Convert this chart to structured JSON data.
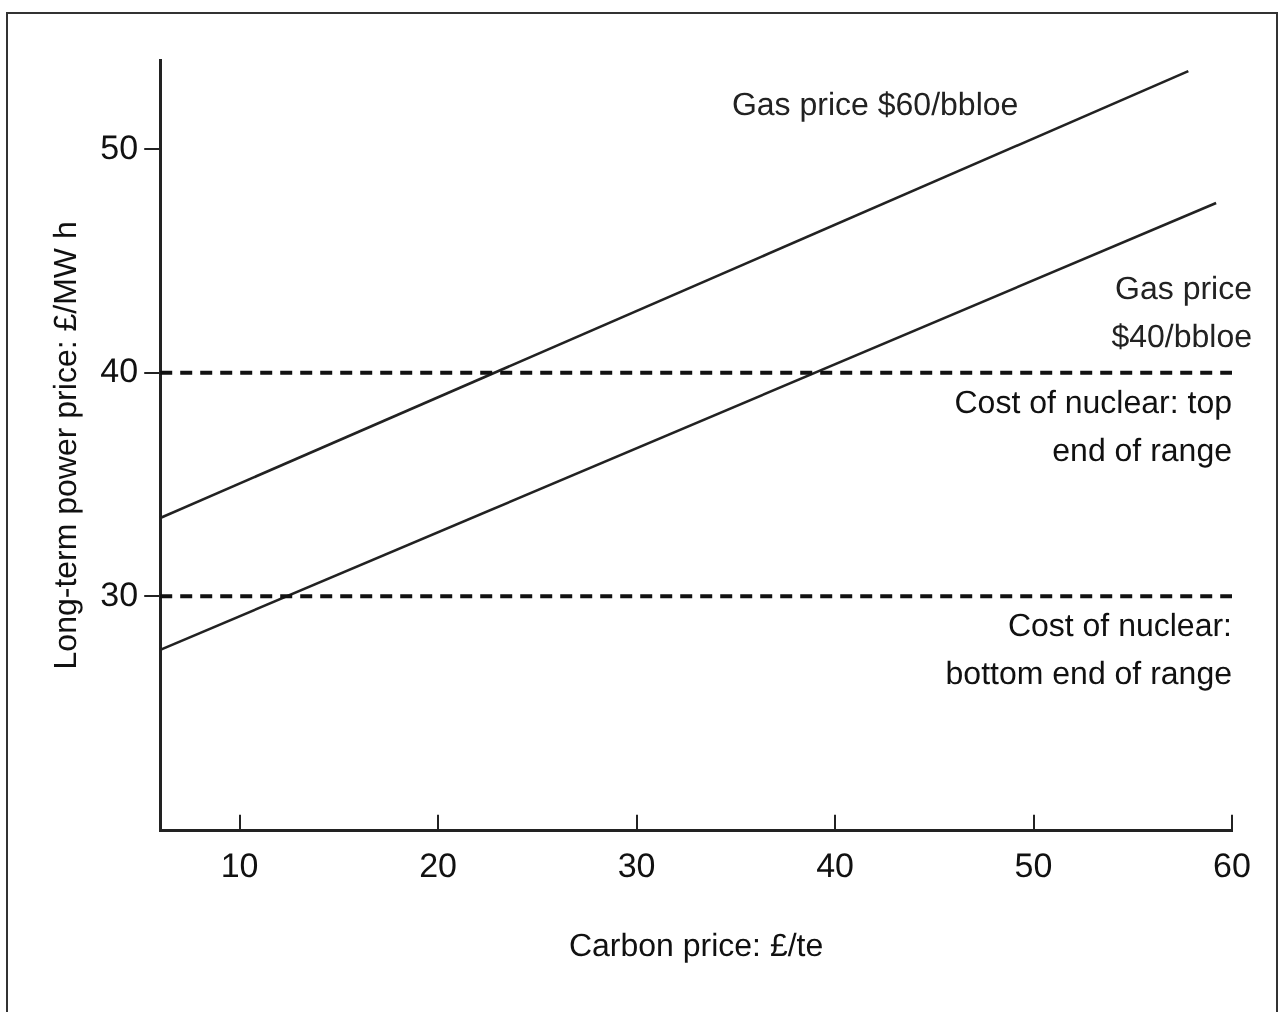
{
  "chart_data": {
    "type": "line",
    "xlabel": "Carbon price: £/te",
    "ylabel": "Long-term power price: £/MW h",
    "series": [
      {
        "name": "Gas price $60/bbloe",
        "color": "#222222",
        "x": [
          6,
          57.8
        ],
        "values": [
          33.5,
          53.5
        ]
      },
      {
        "name": "Gas price $40/bbloe",
        "color": "#222222",
        "x": [
          6,
          59.2
        ],
        "values": [
          27.6,
          47.6
        ]
      }
    ],
    "ref_lines": [
      {
        "axis": "y",
        "value": 40,
        "label": "Cost of nuclear: top end of range",
        "color": "#111111",
        "line_style": "dashed"
      },
      {
        "axis": "y",
        "value": 30,
        "label": "Cost of nuclear: bottom end of range",
        "color": "#111111",
        "line_style": "dashed"
      }
    ],
    "xlim": [
      6,
      60
    ],
    "xticks": [
      10,
      20,
      30,
      40,
      50,
      60
    ],
    "ylim": [
      19.5,
      54
    ],
    "yticks": [
      30,
      40,
      50
    ],
    "grid": false,
    "legend": false,
    "marker": "none",
    "line_style": "solid"
  }
}
